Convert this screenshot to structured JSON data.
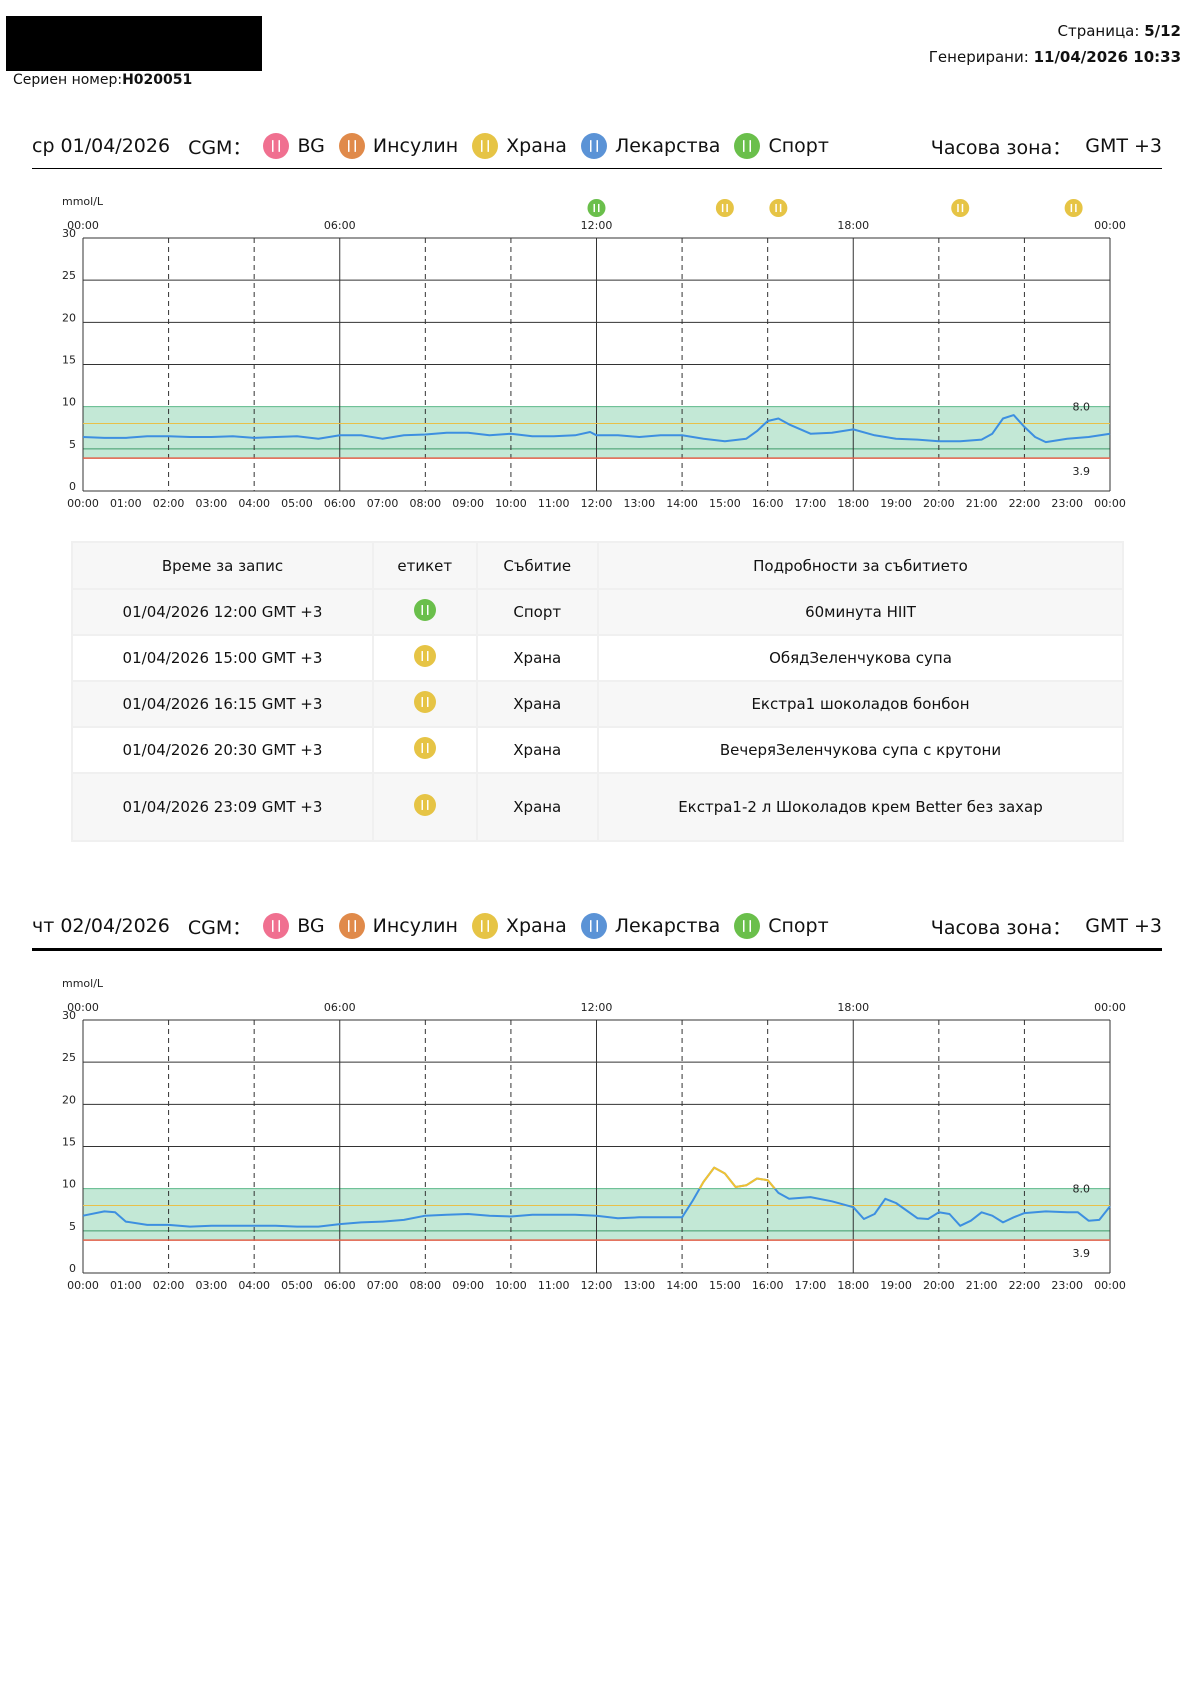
{
  "header": {
    "serial_label": "Сериен номер:",
    "serial": "H020051",
    "page_label": "Страница:",
    "page": "5/12",
    "generated_label": "Генерирани:",
    "generated": "11/04/2026 10:33"
  },
  "days": [
    {
      "date": "ср 01/04/2026",
      "legend_title": "CGM：",
      "legend": [
        {
          "name": "BG",
          "color": "#f07090"
        },
        {
          "name": "Инсулин",
          "color": "#e08a4a"
        },
        {
          "name": "Храна",
          "color": "#e6c445"
        },
        {
          "name": "Лекарства",
          "color": "#5b93d6"
        },
        {
          "name": "Спорт",
          "color": "#6abf4b"
        }
      ],
      "timezone_label": "Часова зона：",
      "timezone": "GMT +3"
    },
    {
      "date": "чт 02/04/2026",
      "legend_title": "CGM：",
      "legend": [
        {
          "name": "BG",
          "color": "#f07090"
        },
        {
          "name": "Инсулин",
          "color": "#e08a4a"
        },
        {
          "name": "Храна",
          "color": "#e6c445"
        },
        {
          "name": "Лекарства",
          "color": "#5b93d6"
        },
        {
          "name": "Спорт",
          "color": "#6abf4b"
        }
      ],
      "timezone_label": "Часова зона：",
      "timezone": "GMT +3"
    }
  ],
  "table": {
    "columns": [
      "Време за запис",
      "етикет",
      "Събитие",
      "Подробности за събитието"
    ],
    "rows": [
      {
        "time": "01/04/2026 12:00 GMT +3",
        "icon_color": "#6abf4b",
        "event": "Спорт",
        "details": "60минута HIIT"
      },
      {
        "time": "01/04/2026 15:00 GMT +3",
        "icon_color": "#e6c445",
        "event": "Храна",
        "details": "ОбядЗеленчукова супа"
      },
      {
        "time": "01/04/2026 16:15 GMT +3",
        "icon_color": "#e6c445",
        "event": "Храна",
        "details": "Екстра1 шоколадов бонбон"
      },
      {
        "time": "01/04/2026 20:30 GMT +3",
        "icon_color": "#e6c445",
        "event": "Храна",
        "details": "ВечеряЗеленчукова супа с крутони"
      },
      {
        "time": "01/04/2026 23:09 GMT +3",
        "icon_color": "#e6c445",
        "event": "Храна",
        "details": "Екстра1-2 л Шоколадов крем Better без захар"
      }
    ]
  },
  "chart_data": [
    {
      "type": "line",
      "y_label": "mmol/L",
      "xlim": [
        0,
        24
      ],
      "ylim": [
        0,
        30
      ],
      "yticks": [
        0,
        5,
        10,
        15,
        20,
        25,
        30
      ],
      "xticks": [
        {
          "value": 0,
          "label": "00:00"
        },
        {
          "value": 1,
          "label": "01:00"
        },
        {
          "value": 2,
          "label": "02:00"
        },
        {
          "value": 3,
          "label": "03:00"
        },
        {
          "value": 4,
          "label": "04:00"
        },
        {
          "value": 5,
          "label": "05:00"
        },
        {
          "value": 6,
          "label": "06:00"
        },
        {
          "value": 7,
          "label": "07:00"
        },
        {
          "value": 8,
          "label": "08:00"
        },
        {
          "value": 9,
          "label": "09:00"
        },
        {
          "value": 10,
          "label": "10:00"
        },
        {
          "value": 11,
          "label": "11:00"
        },
        {
          "value": 12,
          "label": "12:00"
        },
        {
          "value": 13,
          "label": "13:00"
        },
        {
          "value": 14,
          "label": "14:00"
        },
        {
          "value": 15,
          "label": "15:00"
        },
        {
          "value": 16,
          "label": "16:00"
        },
        {
          "value": 17,
          "label": "17:00"
        },
        {
          "value": 18,
          "label": "18:00"
        },
        {
          "value": 19,
          "label": "19:00"
        },
        {
          "value": 20,
          "label": "20:00"
        },
        {
          "value": 21,
          "label": "21:00"
        },
        {
          "value": 22,
          "label": "22:00"
        },
        {
          "value": 23,
          "label": "23:00"
        },
        {
          "value": 24,
          "label": "00:00"
        }
      ],
      "xticks_top": [
        {
          "value": 0,
          "label": "00:00"
        },
        {
          "value": 6,
          "label": "06:00"
        },
        {
          "value": 12,
          "label": "12:00"
        },
        {
          "value": 18,
          "label": "18:00"
        },
        {
          "value": 24,
          "label": "00:00"
        }
      ],
      "target_range": [
        3.9,
        10
      ],
      "target_color": "#c3e8d6",
      "high_line": {
        "value": 8,
        "label": "8.0"
      },
      "low_line": 3.9,
      "high_threshold": 10,
      "high_color": "#f1c232",
      "events": [
        {
          "x": 12,
          "color": "#6abf4b"
        },
        {
          "x": 15,
          "color": "#e6c445"
        },
        {
          "x": 16.25,
          "color": "#e6c445"
        },
        {
          "x": 20.5,
          "color": "#e6c445"
        },
        {
          "x": 23.15,
          "color": "#e6c445"
        }
      ],
      "x": [
        0,
        0.5,
        1,
        1.5,
        2,
        2.5,
        3,
        3.5,
        4,
        4.5,
        5,
        5.5,
        6,
        6.5,
        7,
        7.5,
        8,
        8.5,
        9,
        9.5,
        10,
        10.5,
        11,
        11.5,
        11.85,
        12,
        12.5,
        13,
        13.5,
        14,
        14.5,
        15,
        15.5,
        15.75,
        16,
        16.25,
        16.5,
        17,
        17.5,
        18,
        18.5,
        19,
        19.5,
        20,
        20.5,
        21,
        21.25,
        21.5,
        21.75,
        22,
        22.25,
        22.5,
        23,
        23.5,
        24
      ],
      "series": [
        {
          "color": "#3d8fe0",
          "values": [
            6.4,
            6.3,
            6.3,
            6.5,
            6.5,
            6.4,
            6.4,
            6.5,
            6.3,
            6.4,
            6.5,
            6.2,
            6.6,
            6.6,
            6.2,
            6.6,
            6.7,
            6.9,
            6.9,
            6.6,
            6.8,
            6.5,
            6.5,
            6.6,
            7.0,
            6.6,
            6.6,
            6.4,
            6.6,
            6.6,
            6.2,
            5.9,
            6.2,
            7.1,
            8.3,
            8.6,
            7.9,
            6.8,
            6.9,
            7.3,
            6.6,
            6.2,
            6.1,
            5.9,
            5.9,
            6.1,
            6.8,
            8.6,
            9.0,
            7.6,
            6.4,
            5.8,
            6.2,
            6.4,
            6.8
          ]
        }
      ]
    },
    {
      "type": "line",
      "y_label": "mmol/L",
      "xlim": [
        0,
        24
      ],
      "ylim": [
        0,
        30
      ],
      "yticks": [
        0,
        5,
        10,
        15,
        20,
        25,
        30
      ],
      "xticks": [
        {
          "value": 0,
          "label": "00:00"
        },
        {
          "value": 1,
          "label": "01:00"
        },
        {
          "value": 2,
          "label": "02:00"
        },
        {
          "value": 3,
          "label": "03:00"
        },
        {
          "value": 4,
          "label": "04:00"
        },
        {
          "value": 5,
          "label": "05:00"
        },
        {
          "value": 6,
          "label": "06:00"
        },
        {
          "value": 7,
          "label": "07:00"
        },
        {
          "value": 8,
          "label": "08:00"
        },
        {
          "value": 9,
          "label": "09:00"
        },
        {
          "value": 10,
          "label": "10:00"
        },
        {
          "value": 11,
          "label": "11:00"
        },
        {
          "value": 12,
          "label": "12:00"
        },
        {
          "value": 13,
          "label": "13:00"
        },
        {
          "value": 14,
          "label": "14:00"
        },
        {
          "value": 15,
          "label": "15:00"
        },
        {
          "value": 16,
          "label": "16:00"
        },
        {
          "value": 17,
          "label": "17:00"
        },
        {
          "value": 18,
          "label": "18:00"
        },
        {
          "value": 19,
          "label": "19:00"
        },
        {
          "value": 20,
          "label": "20:00"
        },
        {
          "value": 21,
          "label": "21:00"
        },
        {
          "value": 22,
          "label": "22:00"
        },
        {
          "value": 23,
          "label": "23:00"
        },
        {
          "value": 24,
          "label": "00:00"
        }
      ],
      "xticks_top": [
        {
          "value": 0,
          "label": "00:00"
        },
        {
          "value": 6,
          "label": "06:00"
        },
        {
          "value": 12,
          "label": "12:00"
        },
        {
          "value": 18,
          "label": "18:00"
        },
        {
          "value": 24,
          "label": "00:00"
        }
      ],
      "target_range": [
        3.9,
        10
      ],
      "target_color": "#c3e8d6",
      "high_line": {
        "value": 8,
        "label": "8.0"
      },
      "low_line": 3.9,
      "high_threshold": 10,
      "high_color": "#f1c232",
      "x": [
        0,
        0.5,
        0.75,
        1,
        1.5,
        2,
        2.5,
        3,
        3.5,
        4,
        4.5,
        5,
        5.5,
        6,
        6.5,
        7,
        7.5,
        8,
        8.5,
        9,
        9.5,
        10,
        10.5,
        11,
        11.5,
        12,
        12.5,
        13,
        13.5,
        14,
        14.25,
        14.5,
        14.75,
        15,
        15.25,
        15.5,
        15.75,
        16,
        16.25,
        16.5,
        17,
        17.5,
        18,
        18.25,
        18.5,
        18.75,
        19,
        19.5,
        19.75,
        20,
        20.25,
        20.5,
        20.75,
        21,
        21.25,
        21.5,
        21.75,
        22,
        22.5,
        23,
        23.25,
        23.5,
        23.75,
        24
      ],
      "series": [
        {
          "color": "#3d8fe0",
          "values": [
            6.8,
            7.3,
            7.2,
            6.1,
            5.7,
            5.7,
            5.5,
            5.6,
            5.6,
            5.6,
            5.6,
            5.5,
            5.5,
            5.8,
            6.0,
            6.1,
            6.3,
            6.8,
            6.9,
            7.0,
            6.8,
            6.7,
            6.9,
            6.9,
            6.9,
            6.8,
            6.5,
            6.6,
            6.6,
            6.6,
            8.6,
            10.8,
            12.5,
            11.8,
            10.2,
            10.4,
            11.2,
            11.0,
            9.5,
            8.8,
            9.0,
            8.5,
            7.8,
            6.4,
            7.0,
            8.8,
            8.3,
            6.5,
            6.4,
            7.2,
            7.0,
            5.6,
            6.2,
            7.2,
            6.8,
            6.0,
            6.6,
            7.1,
            7.3,
            7.2,
            7.2,
            6.2,
            6.3,
            7.9
          ]
        }
      ]
    }
  ]
}
